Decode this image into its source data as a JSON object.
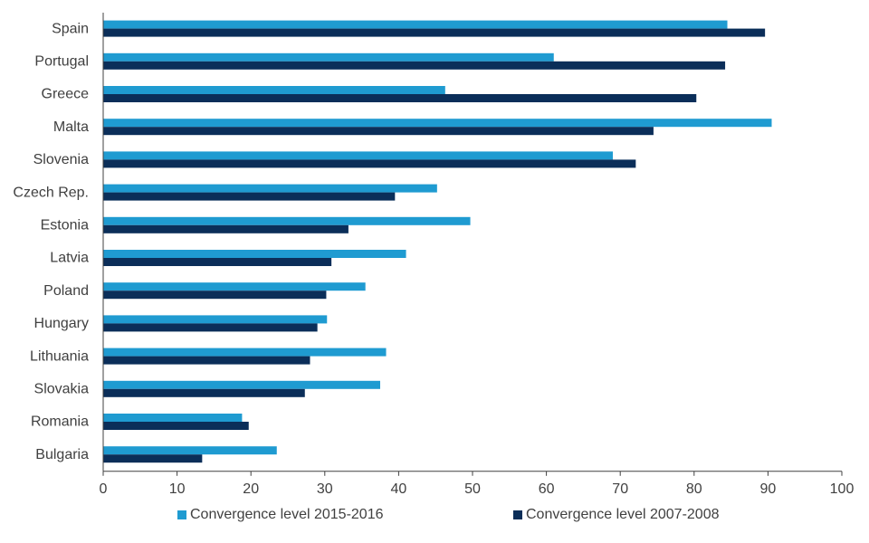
{
  "chart_data": {
    "type": "bar",
    "orientation": "horizontal",
    "categories": [
      "Spain",
      "Portugal",
      "Greece",
      "Malta",
      "Slovenia",
      "Czech Rep.",
      "Estonia",
      "Latvia",
      "Poland",
      "Hungary",
      "Lithuania",
      "Slovakia",
      "Romania",
      "Bulgaria"
    ],
    "series": [
      {
        "name": "Convergence level 2015-2016",
        "color": "#1f9bd1",
        "values": [
          84.5,
          61,
          46.3,
          90.5,
          69,
          45.2,
          49.7,
          41,
          35.5,
          30.3,
          38.3,
          37.5,
          18.8,
          23.5
        ]
      },
      {
        "name": "Convergence level 2007-2008",
        "color": "#0b2e59",
        "values": [
          89.6,
          84.2,
          80.3,
          74.5,
          72.1,
          39.5,
          33.2,
          30.9,
          30.2,
          29,
          28,
          27.3,
          19.7,
          13.4
        ]
      }
    ],
    "xlim": [
      0,
      100
    ],
    "xticks": [
      "0",
      "10",
      "20",
      "30",
      "40",
      "50",
      "60",
      "70",
      "80",
      "90",
      "100"
    ],
    "legend_position": "bottom",
    "grid": false
  }
}
